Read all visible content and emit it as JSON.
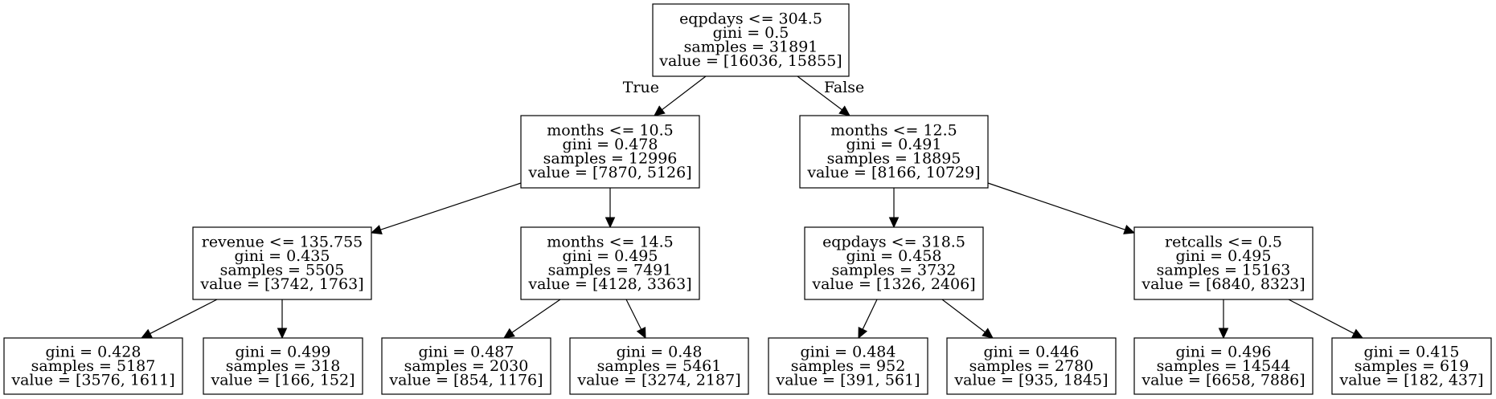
{
  "tree": {
    "nodes": [
      {
        "id": "n0",
        "lines": [
          "eqpdays <= 304.5",
          "gini = 0.5",
          "samples = 31891",
          "value = [16036, 15855]"
        ]
      },
      {
        "id": "n1",
        "lines": [
          "months <= 10.5",
          "gini = 0.478",
          "samples = 12996",
          "value = [7870, 5126]"
        ]
      },
      {
        "id": "n2",
        "lines": [
          "months <= 12.5",
          "gini = 0.491",
          "samples = 18895",
          "value = [8166, 10729]"
        ]
      },
      {
        "id": "n3",
        "lines": [
          "revenue <= 135.755",
          "gini = 0.435",
          "samples = 5505",
          "value = [3742, 1763]"
        ]
      },
      {
        "id": "n4",
        "lines": [
          "months <= 14.5",
          "gini = 0.495",
          "samples = 7491",
          "value = [4128, 3363]"
        ]
      },
      {
        "id": "n5",
        "lines": [
          "eqpdays <= 318.5",
          "gini = 0.458",
          "samples = 3732",
          "value = [1326, 2406]"
        ]
      },
      {
        "id": "n6",
        "lines": [
          "retcalls <= 0.5",
          "gini = 0.495",
          "samples = 15163",
          "value = [6840, 8323]"
        ]
      },
      {
        "id": "n7",
        "lines": [
          "gini = 0.428",
          "samples = 5187",
          "value = [3576, 1611]"
        ]
      },
      {
        "id": "n8",
        "lines": [
          "gini = 0.499",
          "samples = 318",
          "value = [166, 152]"
        ]
      },
      {
        "id": "n9",
        "lines": [
          "gini = 0.487",
          "samples = 2030",
          "value = [854, 1176]"
        ]
      },
      {
        "id": "n10",
        "lines": [
          "gini = 0.48",
          "samples = 5461",
          "value = [3274, 2187]"
        ]
      },
      {
        "id": "n11",
        "lines": [
          "gini = 0.484",
          "samples = 952",
          "value = [391, 561]"
        ]
      },
      {
        "id": "n12",
        "lines": [
          "gini = 0.446",
          "samples = 2780",
          "value = [935, 1845]"
        ]
      },
      {
        "id": "n13",
        "lines": [
          "gini = 0.496",
          "samples = 14544",
          "value = [6658, 7886]"
        ]
      },
      {
        "id": "n14",
        "lines": [
          "gini = 0.415",
          "samples = 619",
          "value = [182, 437]"
        ]
      }
    ],
    "edges": [
      {
        "from": "n0",
        "to": "n1",
        "label": "True"
      },
      {
        "from": "n0",
        "to": "n2",
        "label": "False"
      },
      {
        "from": "n1",
        "to": "n3",
        "label": ""
      },
      {
        "from": "n1",
        "to": "n4",
        "label": ""
      },
      {
        "from": "n2",
        "to": "n5",
        "label": ""
      },
      {
        "from": "n2",
        "to": "n6",
        "label": ""
      },
      {
        "from": "n3",
        "to": "n7",
        "label": ""
      },
      {
        "from": "n3",
        "to": "n8",
        "label": ""
      },
      {
        "from": "n4",
        "to": "n9",
        "label": ""
      },
      {
        "from": "n4",
        "to": "n10",
        "label": ""
      },
      {
        "from": "n5",
        "to": "n11",
        "label": ""
      },
      {
        "from": "n5",
        "to": "n12",
        "label": ""
      },
      {
        "from": "n6",
        "to": "n13",
        "label": ""
      },
      {
        "from": "n6",
        "to": "n14",
        "label": ""
      }
    ]
  }
}
